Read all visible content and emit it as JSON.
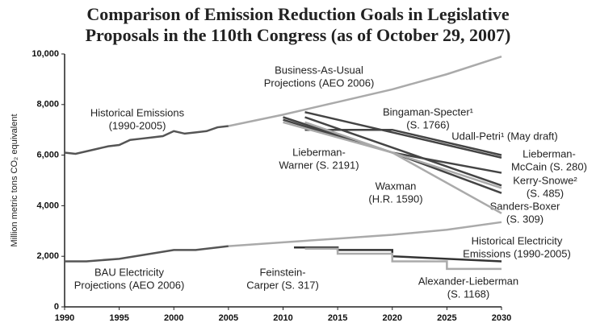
{
  "chart_data": {
    "type": "line",
    "title": [
      "Comparison of Emission Reduction Goals in Legislative",
      "Proposals in the 110th Congress (as of October 29, 2007)"
    ],
    "y_label": "Million metric tons CO₂ equivalent",
    "xlim": [
      1990,
      2030
    ],
    "xticks": [
      1990,
      1995,
      2000,
      2005,
      2010,
      2015,
      2020,
      2025,
      2030
    ],
    "ylim": [
      0,
      10000
    ],
    "yticks": [
      0,
      {
        "value": 2000,
        "label": "2,000"
      },
      {
        "value": 4000,
        "label": "4,000"
      },
      {
        "value": 6000,
        "label": "6,000"
      },
      {
        "value": 8000,
        "label": "8,000"
      },
      {
        "value": 10000,
        "label": "10,000"
      }
    ],
    "series": [
      {
        "label": [
          "Historical Emissions",
          "(1990-2005)"
        ],
        "color": "#555555",
        "x": [
          1990,
          1991,
          1992,
          1993,
          1994,
          1995,
          1996,
          1997,
          1998,
          1999,
          2000,
          2001,
          2002,
          2003,
          2004,
          2005
        ],
        "values": [
          6100,
          6050,
          6150,
          6250,
          6350,
          6400,
          6600,
          6650,
          6700,
          6750,
          6950,
          6850,
          6900,
          6950,
          7100,
          7150
        ]
      },
      {
        "label": [
          "Business-As-Usual",
          "Projections (AEO 2006)"
        ],
        "color": "#aaaaaa",
        "x": [
          2005,
          2010,
          2015,
          2020,
          2025,
          2030
        ],
        "values": [
          7150,
          7600,
          8100,
          8600,
          9200,
          9900
        ]
      },
      {
        "label": [
          "Bingaman-Specter¹",
          "(S. 1766)"
        ],
        "color": "#444444",
        "x": [
          2012,
          2020,
          2030
        ],
        "values": [
          7000,
          7000,
          6000
        ]
      },
      {
        "label": [
          "Udall-Petri¹ (May draft)"
        ],
        "color": "#444444",
        "x": [
          2012,
          2030
        ],
        "values": [
          7700,
          5900
        ]
      },
      {
        "label": [
          "Lieberman-",
          "McCain (S. 280)"
        ],
        "color": "#444444",
        "x": [
          2010,
          2020,
          2030
        ],
        "values": [
          7500,
          6100,
          5300
        ]
      },
      {
        "label": [
          "Kerry-Snowe²",
          "(S. 485)"
        ],
        "color": "#444444",
        "x": [
          2012,
          2030
        ],
        "values": [
          7500,
          4800
        ]
      },
      {
        "label": [
          "Sanders-Boxer",
          "(S. 309)"
        ],
        "color": "#444444",
        "x": [
          2010,
          2020,
          2030
        ],
        "values": [
          7400,
          6100,
          4500
        ]
      },
      {
        "label": [
          "Lieberman-",
          "Warner (S. 2191)"
        ],
        "color": "#aaaaaa",
        "x": [
          2012,
          2020,
          2030
        ],
        "values": [
          7300,
          6100,
          4700
        ]
      },
      {
        "label": [
          "Waxman",
          "(H.R. 1590)"
        ],
        "color": "#aaaaaa",
        "x": [
          2010,
          2020,
          2030
        ],
        "values": [
          7300,
          6100,
          3700
        ]
      },
      {
        "label": [
          "Historical Electricity",
          "Emissions (1990-2005)"
        ],
        "color": "#555555",
        "x": [
          1990,
          1992,
          1995,
          2000,
          2002,
          2005
        ],
        "values": [
          1800,
          1800,
          1900,
          2250,
          2250,
          2400
        ]
      },
      {
        "label": [
          "BAU Electricity",
          "Projections (AEO 2006)"
        ],
        "color": "#aaaaaa",
        "x": [
          2005,
          2010,
          2015,
          2020,
          2025,
          2030
        ],
        "values": [
          2400,
          2550,
          2700,
          2850,
          3050,
          3350
        ]
      },
      {
        "label": [
          "Feinstein-",
          "Carper (S. 317)"
        ],
        "color": "#333333",
        "x": [
          2011,
          2015,
          2015,
          2020,
          2020,
          2030
        ],
        "values": [
          2350,
          2350,
          2250,
          2250,
          2000,
          1800
        ]
      },
      {
        "label": [
          "Alexander-Lieberman",
          "(S. 1168)"
        ],
        "color": "#aaaaaa",
        "x": [
          2012,
          2015,
          2015,
          2020,
          2020,
          2025,
          2025,
          2030
        ],
        "values": [
          2300,
          2300,
          2100,
          2100,
          1800,
          1800,
          1500,
          1500
        ]
      }
    ]
  }
}
